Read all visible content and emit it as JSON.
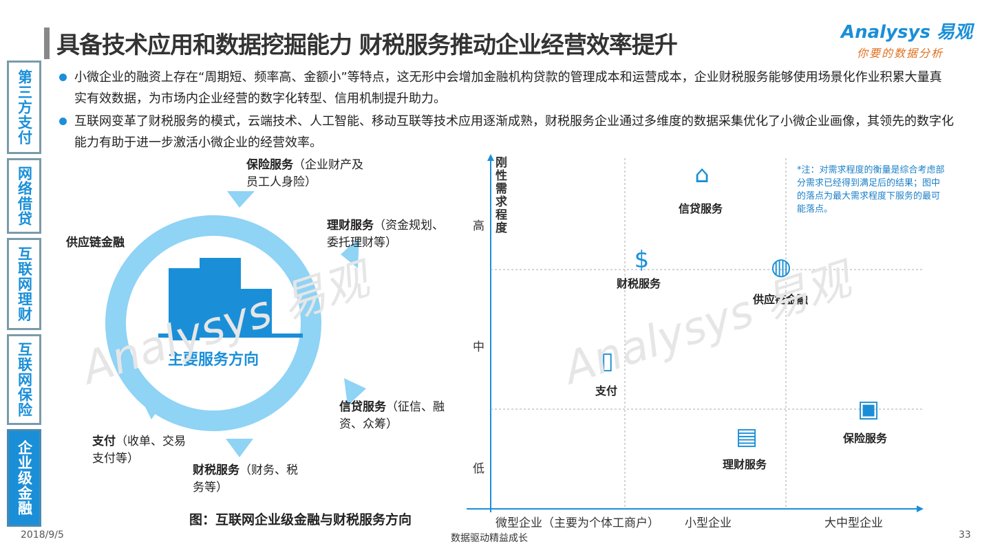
{
  "header": {
    "title": "具备技术应用和数据挖掘能力  财税服务推动企业经营效率提升",
    "logo": "Analysys 易观",
    "logo_slogan": "你要的数据分析"
  },
  "sidebar": {
    "tabs": [
      {
        "label": "第三方支付",
        "active": false
      },
      {
        "label": "网络借贷",
        "active": false
      },
      {
        "label": "互联网理财",
        "active": false
      },
      {
        "label": "互联网保险",
        "active": false
      },
      {
        "label": "企业级金融",
        "active": true
      }
    ]
  },
  "bullets": [
    "小微企业的融资上存在“周期短、频率高、金额小”等特点，这无形中会增加金融机构贷款的管理成本和运营成本，企业财税服务能够使用场景化作业积累大量真实有效数据，为市场内企业经营的数字化转型、信用机制提升助力。",
    "互联网变革了财税服务的模式，云端技术、人工智能、移动互联等技术应用逐渐成熟，财税服务企业通过多维度的数据采集优化了小微企业画像，其领先的数字化能力有助于进一步激活小微企业的经营效率。"
  ],
  "left_diagram": {
    "center": "主要服务方向",
    "caption": "图：互联网企业级金融与财税服务方向",
    "items": [
      {
        "name": "保险服务",
        "detail": "（企业财产及员工人身险）"
      },
      {
        "name": "理财服务",
        "detail": "（资金规划、委托理财等）"
      },
      {
        "name": "信贷服务",
        "detail": "（征信、融资、众筹）"
      },
      {
        "name": "财税服务",
        "detail": "（财务、税务等）"
      },
      {
        "name": "支付",
        "detail": "（收单、交易支付等）"
      },
      {
        "name": "供应链金融",
        "detail": ""
      }
    ]
  },
  "right_chart": {
    "ylabel": "刚性需求程度",
    "yticks": [
      "高",
      "中",
      "低"
    ],
    "xticks": [
      "微型企业（主要为个体工商户）",
      "小型企业",
      "大中型企业"
    ],
    "note": "*注：对需求程度的衡量是综合考虑部分需求已经得到满足后的结果；图中的落点为最大需求程度下服务的最可能落点。",
    "points": [
      {
        "label": "信贷服务",
        "icon": "house-hand-icon",
        "x": "小型企业",
        "y": "高"
      },
      {
        "label": "财税服务",
        "icon": "money-bag-icon",
        "x": "微型企业",
        "y": "高-中"
      },
      {
        "label": "供应链金融",
        "icon": "globe-arrow-icon",
        "x": "小型-大中型企业",
        "y": "高-中"
      },
      {
        "label": "支付",
        "icon": "mobile-card-icon",
        "x": "微型企业",
        "y": "中"
      },
      {
        "label": "理财服务",
        "icon": "cash-stack-icon",
        "x": "小型企业",
        "y": "低"
      },
      {
        "label": "保险服务",
        "icon": "box-shield-icon",
        "x": "大中型企业",
        "y": "中-低"
      }
    ]
  },
  "footer": {
    "date": "2018/9/5",
    "center": "数据驱动精益成长",
    "page": "33"
  },
  "colors": {
    "accent": "#1a8fd8",
    "ring": "#8fd3f5"
  }
}
